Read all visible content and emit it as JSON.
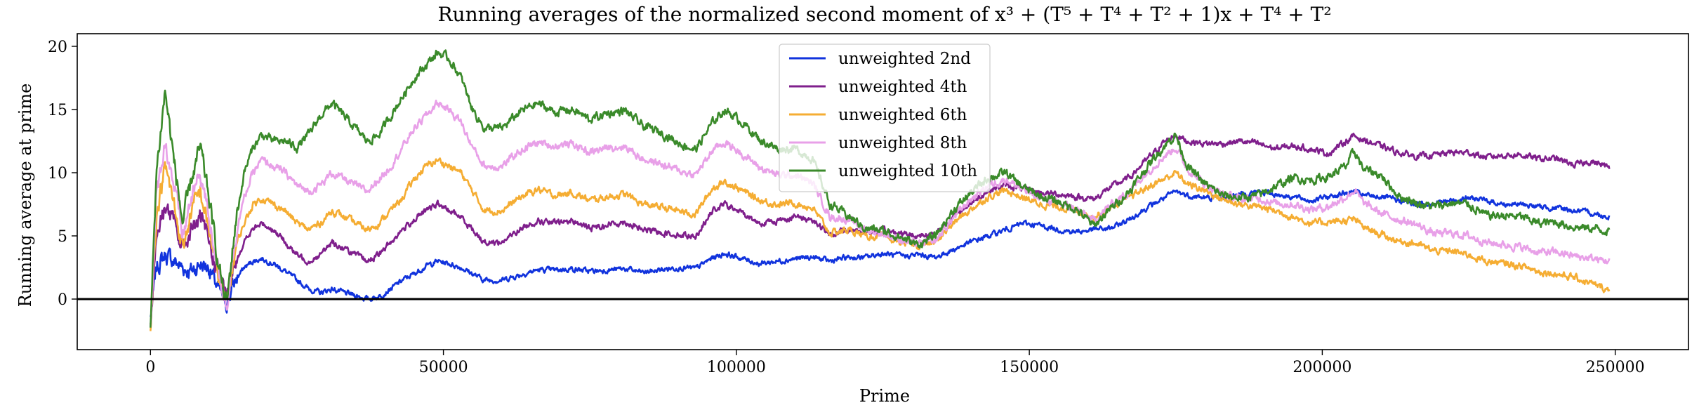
{
  "chart_data": {
    "type": "line",
    "title": "Running averages of the normalized second moment of x³ + (T⁵ + T⁴ + T² + 1)x + T⁴ + T²",
    "xlabel": "Prime",
    "ylabel": "Running average at prime",
    "xlim": [
      -12500,
      262500
    ],
    "ylim": [
      -4,
      21
    ],
    "xticks": [
      0,
      50000,
      100000,
      150000,
      200000,
      250000
    ],
    "xtick_labels": [
      "0",
      "50000",
      "100000",
      "150000",
      "200000",
      "250000"
    ],
    "yticks": [
      0,
      5,
      10,
      15,
      20
    ],
    "ytick_labels": [
      "0",
      "5",
      "10",
      "15",
      "20"
    ],
    "hline": 0,
    "legend_position": "upper-center",
    "noise_seed": 7,
    "x": [
      0,
      1000,
      2500,
      4000,
      5500,
      7000,
      8500,
      10000,
      11500,
      13000,
      14500,
      16000,
      17500,
      19000,
      21000,
      23000,
      25000,
      27000,
      29000,
      31000,
      33000,
      35000,
      37000,
      39000,
      41000,
      43000,
      45000,
      47000,
      49000,
      51000,
      53000,
      55000,
      57000,
      60000,
      63000,
      66000,
      69000,
      72000,
      75000,
      78000,
      81000,
      84000,
      87000,
      90000,
      93000,
      96000,
      98000,
      101000,
      104000,
      107000,
      110000,
      113000,
      116000,
      119000,
      122000,
      125000,
      128000,
      131000,
      134000,
      137000,
      140000,
      143000,
      146000,
      149000,
      152000,
      155000,
      158000,
      161000,
      164000,
      167000,
      170000,
      173000,
      175000,
      177000,
      180000,
      183000,
      186000,
      189000,
      192000,
      195000,
      198000,
      201000,
      204000,
      205500,
      207000,
      210000,
      213000,
      216000,
      219000,
      222000,
      225000,
      228000,
      231000,
      234000,
      237000,
      240000,
      243000,
      246000,
      249000
    ],
    "series": [
      {
        "name": "unweighted 2nd",
        "color": "#1133dd",
        "values": [
          -1.5,
          2.5,
          3.5,
          3.0,
          2.5,
          2.2,
          2.8,
          2.5,
          0.8,
          -0.3,
          1.5,
          2.5,
          3.0,
          3.2,
          2.8,
          2.2,
          1.5,
          0.8,
          0.5,
          0.8,
          0.5,
          0.3,
          0.0,
          0.2,
          0.8,
          1.5,
          2.0,
          2.6,
          3.0,
          2.8,
          2.5,
          2.0,
          1.5,
          1.5,
          1.9,
          2.3,
          2.3,
          2.4,
          2.2,
          2.3,
          2.4,
          2.1,
          2.3,
          2.5,
          2.4,
          3.3,
          3.6,
          3.2,
          2.8,
          3.0,
          3.2,
          3.3,
          3.0,
          3.3,
          3.3,
          3.6,
          3.4,
          3.5,
          3.3,
          3.9,
          4.5,
          5.0,
          5.5,
          6.0,
          5.8,
          5.5,
          5.3,
          5.5,
          5.6,
          6.3,
          7.2,
          8.0,
          8.5,
          8.2,
          8.0,
          8.0,
          8.3,
          8.5,
          8.3,
          8.1,
          7.8,
          8.1,
          8.4,
          8.5,
          8.2,
          8.1,
          7.8,
          7.5,
          7.6,
          7.8,
          8.0,
          7.8,
          7.5,
          7.5,
          7.3,
          7.2,
          7.0,
          6.8,
          6.5
        ]
      },
      {
        "name": "unweighted 4th",
        "color": "#7f1f8c",
        "values": [
          -1.8,
          5.0,
          7.5,
          6.0,
          4.0,
          5.5,
          6.5,
          4.5,
          2.0,
          -0.2,
          3.0,
          4.5,
          5.5,
          6.0,
          5.5,
          4.5,
          3.5,
          3.0,
          3.5,
          4.5,
          4.0,
          3.5,
          3.0,
          3.5,
          4.5,
          5.5,
          6.3,
          7.0,
          7.5,
          7.0,
          6.5,
          5.5,
          4.5,
          4.5,
          5.5,
          6.2,
          6.0,
          6.2,
          5.6,
          5.9,
          6.1,
          5.5,
          5.3,
          5.1,
          5.0,
          7.0,
          7.5,
          6.8,
          6.0,
          6.2,
          6.5,
          6.3,
          5.0,
          5.5,
          5.3,
          5.4,
          5.2,
          5.0,
          5.2,
          6.5,
          7.6,
          8.6,
          9.0,
          8.7,
          8.4,
          8.3,
          8.1,
          7.9,
          8.9,
          9.6,
          11.0,
          12.4,
          13.0,
          12.5,
          12.3,
          12.3,
          12.5,
          12.3,
          11.9,
          12.1,
          11.9,
          11.5,
          12.5,
          12.9,
          12.6,
          12.1,
          11.6,
          11.3,
          11.4,
          11.6,
          11.6,
          11.2,
          11.4,
          11.4,
          11.1,
          11.1,
          10.6,
          10.9,
          10.4
        ]
      },
      {
        "name": "unweighted 6th",
        "color": "#f5ad33",
        "values": [
          -2.0,
          6.5,
          10.5,
          7.5,
          4.0,
          7.0,
          8.5,
          5.5,
          2.0,
          -0.5,
          4.0,
          6.0,
          7.5,
          8.0,
          7.5,
          7.0,
          6.0,
          5.5,
          6.0,
          7.0,
          6.5,
          6.0,
          5.5,
          6.0,
          7.0,
          8.0,
          9.5,
          10.5,
          11.0,
          10.5,
          10.0,
          8.5,
          7.0,
          7.0,
          8.0,
          8.7,
          8.2,
          8.4,
          7.8,
          8.1,
          8.3,
          7.5,
          7.3,
          7.0,
          6.7,
          8.8,
          9.3,
          8.6,
          7.8,
          7.5,
          7.6,
          7.2,
          5.2,
          5.5,
          5.0,
          4.9,
          4.5,
          4.2,
          4.5,
          6.0,
          7.1,
          8.1,
          8.6,
          8.0,
          7.5,
          7.3,
          7.0,
          6.5,
          7.3,
          8.0,
          8.8,
          9.5,
          10.0,
          9.1,
          8.6,
          7.9,
          7.5,
          7.3,
          7.0,
          6.5,
          6.0,
          6.1,
          6.2,
          6.3,
          5.7,
          5.1,
          4.6,
          4.4,
          3.8,
          3.8,
          3.5,
          3.0,
          2.8,
          2.6,
          2.2,
          2.0,
          1.7,
          1.2,
          0.7
        ]
      },
      {
        "name": "unweighted 8th",
        "color": "#e8a0e8",
        "values": [
          -2.2,
          8.0,
          12.5,
          9.0,
          5.0,
          8.0,
          10.0,
          6.5,
          2.5,
          -0.6,
          5.0,
          8.0,
          10.0,
          11.0,
          10.5,
          10.0,
          9.0,
          8.5,
          9.0,
          10.0,
          9.5,
          9.0,
          8.5,
          9.5,
          10.5,
          12.0,
          13.5,
          14.5,
          15.5,
          15.0,
          14.0,
          12.0,
          10.5,
          10.5,
          11.7,
          12.4,
          12.1,
          12.3,
          11.6,
          12.0,
          12.1,
          11.1,
          10.7,
          10.2,
          9.8,
          11.8,
          12.4,
          11.5,
          10.4,
          9.8,
          9.8,
          9.2,
          6.5,
          6.3,
          5.5,
          5.2,
          4.7,
          4.3,
          4.6,
          6.4,
          7.9,
          9.0,
          9.5,
          8.6,
          8.0,
          7.6,
          7.1,
          6.2,
          7.5,
          8.5,
          10.0,
          11.3,
          12.0,
          10.3,
          9.1,
          8.3,
          7.9,
          8.0,
          7.6,
          7.5,
          7.1,
          7.3,
          8.1,
          8.6,
          7.6,
          6.8,
          6.3,
          5.9,
          5.2,
          5.2,
          5.0,
          4.5,
          4.3,
          4.1,
          3.7,
          3.7,
          3.4,
          3.2,
          3.0
        ]
      },
      {
        "name": "unweighted 10th",
        "color": "#3a8a2a",
        "values": [
          -2.5,
          10.0,
          16.5,
          11.0,
          6.0,
          9.5,
          12.0,
          8.0,
          3.0,
          -0.5,
          6.0,
          10.0,
          12.0,
          13.0,
          12.5,
          12.5,
          12.0,
          13.0,
          14.5,
          15.5,
          14.5,
          13.5,
          12.5,
          13.0,
          14.5,
          16.0,
          17.5,
          18.5,
          19.5,
          19.0,
          17.5,
          15.0,
          13.5,
          13.5,
          14.8,
          15.5,
          14.8,
          15.0,
          14.2,
          14.7,
          14.9,
          13.7,
          13.2,
          12.4,
          11.8,
          14.0,
          15.0,
          14.0,
          12.6,
          11.9,
          11.9,
          11.1,
          7.5,
          6.6,
          5.6,
          5.4,
          4.9,
          4.3,
          5.0,
          7.0,
          8.4,
          9.6,
          10.0,
          8.8,
          8.1,
          7.7,
          7.1,
          5.8,
          7.2,
          8.5,
          10.4,
          12.1,
          13.0,
          10.5,
          9.1,
          8.2,
          8.0,
          8.2,
          8.9,
          9.6,
          9.4,
          9.7,
          10.5,
          11.7,
          10.3,
          9.8,
          8.2,
          7.6,
          7.3,
          7.6,
          7.5,
          6.6,
          6.6,
          6.5,
          6.0,
          6.1,
          5.7,
          5.6,
          5.4
        ]
      }
    ]
  }
}
